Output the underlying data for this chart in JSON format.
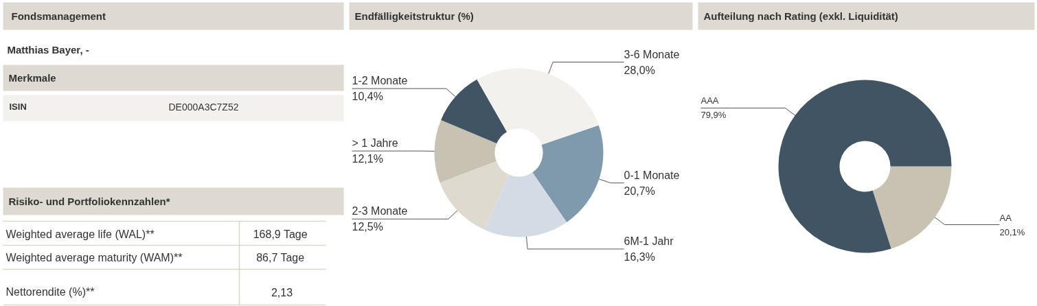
{
  "chart_data": [
    {
      "type": "other",
      "title": "Fondsmanagement",
      "annotations": [
        "Matthias Bayer, -",
        "Merkmale",
        "ISIN",
        "DE000A3C7Z52",
        "Risiko- und Portfoliokennzahlen*",
        "Weighted average life (WAL)**",
        "168,9  Tage",
        "Weighted average maturity (WAM)**",
        "86,7  Tage",
        "Nettorendite (%)**",
        "2,13"
      ]
    },
    {
      "type": "donut",
      "title": "Endfälligkeitstruktur (%)",
      "categories": [
        "0-1 Monate",
        "6M-1 Jahr",
        "2-3 Monate",
        "> 1 Jahre",
        "1-2 Monate",
        "3-6 Monate"
      ],
      "values": [
        20.7,
        16.3,
        12.5,
        12.1,
        10.4,
        28.0
      ],
      "value_labels": [
        "20,7%",
        "16,3%",
        "12,5%",
        "12,1%",
        "10,4%",
        "28,0%"
      ],
      "colors": [
        "#7f9aad",
        "#d3dce4",
        "#dedad0",
        "#c8c2b2",
        "#415464",
        "#f2f1ed"
      ]
    },
    {
      "type": "donut",
      "title": "Aufteilung nach Rating (exkl. Liquidität)",
      "categories": [
        "AA",
        "AAA"
      ],
      "values": [
        20.1,
        79.9
      ],
      "value_labels": [
        "20,1%",
        "79,9%"
      ],
      "colors": [
        "#c8c2b2",
        "#415464"
      ]
    }
  ]
}
